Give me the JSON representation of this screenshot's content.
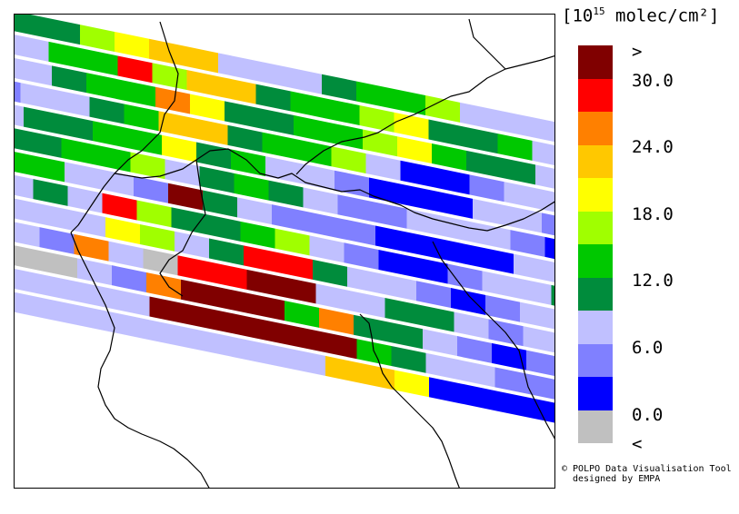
{
  "legend": {
    "unit_base": "[10",
    "unit_exp": "15",
    "unit_rest": " molec/cm²]",
    "over_label": ">",
    "under_label": "<",
    "ticks": [
      "30.0",
      "24.0",
      "18.0",
      "12.0",
      "6.0",
      "0.0"
    ],
    "colors": [
      "#800000",
      "#ff0000",
      "#ff8000",
      "#ffc800",
      "#ffff00",
      "#a0ff00",
      "#00c800",
      "#008c3c",
      "#c0c0ff",
      "#8080ff",
      "#0000ff",
      "#c0c0c0"
    ]
  },
  "credit": {
    "line1": "© POLPO Data Visualisation Tool",
    "line2": "designed by EMPA"
  },
  "swaths": [
    {
      "name": "swath-1",
      "pixels": [
        11,
        11,
        7,
        7,
        5,
        4,
        3,
        3,
        8,
        8,
        8,
        7,
        6,
        6,
        5,
        8,
        8,
        8,
        7,
        7,
        6,
        6
      ]
    },
    {
      "name": "swath-2",
      "pixels": [
        8,
        8,
        8,
        6,
        6,
        1,
        5,
        3,
        3,
        7,
        6,
        6,
        5,
        4,
        7,
        7,
        6,
        8,
        8,
        9,
        7,
        7
      ]
    },
    {
      "name": "swath-3",
      "pixels": [
        9,
        8,
        8,
        7,
        6,
        6,
        2,
        4,
        7,
        7,
        6,
        6,
        5,
        4,
        6,
        7,
        7,
        8,
        9,
        10,
        7,
        8
      ]
    },
    {
      "name": "swath-4",
      "pixels": [
        8,
        9,
        8,
        8,
        7,
        6,
        3,
        3,
        7,
        6,
        6,
        5,
        8,
        10,
        10,
        9,
        8,
        8,
        8,
        9,
        6,
        7
      ]
    },
    {
      "name": "swath-5",
      "pixels": [
        9,
        8,
        7,
        7,
        6,
        6,
        4,
        7,
        6,
        8,
        8,
        9,
        10,
        10,
        10,
        8,
        8,
        9,
        9,
        8,
        7,
        7
      ]
    },
    {
      "name": "swath-6",
      "pixels": [
        8,
        7,
        7,
        6,
        6,
        5,
        8,
        7,
        6,
        7,
        8,
        9,
        9,
        8,
        8,
        8,
        9,
        10,
        10,
        8,
        7,
        6
      ]
    },
    {
      "name": "swath-7",
      "pixels": [
        7,
        6,
        6,
        8,
        8,
        9,
        0,
        7,
        8,
        9,
        9,
        9,
        10,
        10,
        10,
        10,
        8,
        8,
        7,
        5,
        6,
        6
      ]
    },
    {
      "name": "swath-8",
      "pixels": [
        8,
        8,
        7,
        8,
        1,
        5,
        7,
        7,
        6,
        5,
        8,
        9,
        10,
        10,
        9,
        8,
        8,
        7,
        8,
        8,
        9,
        10
      ]
    },
    {
      "name": "swath-9",
      "pixels": [
        8,
        8,
        8,
        8,
        4,
        5,
        8,
        7,
        1,
        1,
        7,
        8,
        8,
        9,
        10,
        9,
        8,
        3,
        7,
        8,
        9,
        10
      ]
    },
    {
      "name": "swath-10",
      "pixels": [
        8,
        8,
        9,
        2,
        8,
        11,
        1,
        1,
        0,
        0,
        8,
        8,
        7,
        7,
        8,
        9,
        8,
        9,
        10,
        10,
        9,
        10
      ]
    },
    {
      "name": "swath-11",
      "pixels": [
        8,
        11,
        11,
        8,
        9,
        2,
        0,
        0,
        0,
        6,
        2,
        7,
        7,
        8,
        9,
        10,
        9,
        10,
        10,
        8,
        9,
        10
      ]
    },
    {
      "name": "swath-12",
      "pixels": [
        8,
        8,
        8,
        8,
        8,
        0,
        0,
        0,
        0,
        0,
        0,
        6,
        7,
        8,
        8,
        9,
        9,
        10,
        10,
        10,
        9,
        10
      ]
    },
    {
      "name": "swath-13",
      "pixels": [
        8,
        8,
        8,
        8,
        8,
        8,
        8,
        8,
        8,
        8,
        3,
        3,
        4,
        10,
        10,
        10,
        10,
        9,
        9,
        8,
        8,
        8
      ]
    }
  ]
}
